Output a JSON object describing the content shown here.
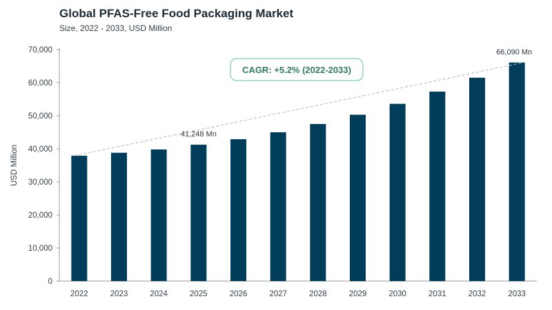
{
  "header": {
    "title": "Global PFAS-Free Food Packaging Market",
    "subtitle": "Size, 2022 - 2033, USD Million"
  },
  "annotation": {
    "cagr": "CAGR: +5.2% (2022-2033)"
  },
  "colors": {
    "bar": "#003d5b",
    "cagr_border": "#7fd1b0",
    "cagr_text": "#2f7d62",
    "trend_line": "#b5b5b5",
    "axis": "#9a9a9a"
  },
  "chart_data": {
    "type": "bar",
    "title": "Global PFAS-Free Food Packaging Market",
    "subtitle": "Size, 2022 - 2033, USD Million",
    "xlabel": "",
    "ylabel": "USD Million",
    "ylim": [
      0,
      70000
    ],
    "yticks": [
      0,
      10000,
      20000,
      30000,
      40000,
      50000,
      60000,
      70000
    ],
    "ytick_labels": [
      "0",
      "10,000",
      "20,000",
      "30,000",
      "40,000",
      "50,000",
      "60,000",
      "70,000"
    ],
    "categories": [
      "2022",
      "2023",
      "2024",
      "2025",
      "2026",
      "2027",
      "2028",
      "2029",
      "2030",
      "2031",
      "2032",
      "2033"
    ],
    "values": [
      37900,
      38800,
      39800,
      41248,
      42900,
      45000,
      47500,
      50300,
      53600,
      57300,
      61500,
      66090
    ],
    "data_labels": [
      {
        "category": "2025",
        "text": "41,248 Mn"
      },
      {
        "category": "2033",
        "text": "66,090 Mn"
      }
    ],
    "grid": false,
    "legend": "none",
    "trend_line": "dashed, from 2022 bar top to 2033 bar top"
  }
}
